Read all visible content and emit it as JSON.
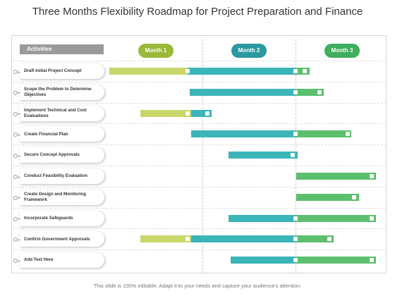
{
  "title": "Three Months Flexibility Roadmap for Project Preparation and Finance",
  "activities_label": "Activities",
  "months": [
    {
      "label": "Month 1",
      "color": "#9ab83a"
    },
    {
      "label": "Month 2",
      "color": "#2a9aa0"
    },
    {
      "label": "Month 3",
      "color": "#3fae5e"
    }
  ],
  "colors": {
    "lime": "#c8d66a",
    "teal": "#3bb5b7",
    "green": "#5cbf6e"
  },
  "rows": [
    {
      "label": "Draft Initial Project Concept",
      "segments": [
        {
          "color": "lime",
          "start": 0.0,
          "end": 0.84
        },
        {
          "color": "teal",
          "start": 0.84,
          "end": 2.0
        },
        {
          "color": "green",
          "start": 2.0,
          "end": 2.15
        }
      ],
      "markers": [
        0.84,
        2.0,
        2.1
      ]
    },
    {
      "label": "Scope the Problem to Determine Objectives",
      "segments": [
        {
          "color": "teal",
          "start": 0.86,
          "end": 2.0
        },
        {
          "color": "green",
          "start": 2.0,
          "end": 2.3
        }
      ],
      "markers": [
        2.0,
        2.26
      ]
    },
    {
      "label": "Implement Technical and Cost Evaluations",
      "segments": [
        {
          "color": "lime",
          "start": 0.33,
          "end": 0.88
        },
        {
          "color": "teal",
          "start": 0.88,
          "end": 1.1
        }
      ],
      "markers": [
        0.84,
        1.05
      ]
    },
    {
      "label": "Create Financial Plan",
      "segments": [
        {
          "color": "teal",
          "start": 0.88,
          "end": 2.0
        },
        {
          "color": "green",
          "start": 2.0,
          "end": 2.6
        }
      ],
      "markers": [
        2.0,
        2.56
      ]
    },
    {
      "label": "Secure Concept Approvals",
      "segments": [
        {
          "color": "teal",
          "start": 1.28,
          "end": 2.02
        }
      ],
      "markers": [
        1.97
      ]
    },
    {
      "label": "Conduct Feasibility Evaluation",
      "segments": [
        {
          "color": "green",
          "start": 2.01,
          "end": 2.86
        }
      ],
      "markers": [
        2.82
      ]
    },
    {
      "label": "Create Design and Monitoring Framework",
      "segments": [
        {
          "color": "green",
          "start": 2.01,
          "end": 2.68
        }
      ],
      "markers": [
        2.63
      ]
    },
    {
      "label": "Incorporate Safeguards",
      "segments": [
        {
          "color": "teal",
          "start": 1.28,
          "end": 2.0
        },
        {
          "color": "green",
          "start": 2.0,
          "end": 2.86
        }
      ],
      "markers": [
        2.0,
        2.82
      ]
    },
    {
      "label": "Confirm Government Approvals",
      "segments": [
        {
          "color": "lime",
          "start": 0.33,
          "end": 0.88
        },
        {
          "color": "teal",
          "start": 0.88,
          "end": 2.0
        },
        {
          "color": "green",
          "start": 2.0,
          "end": 2.41
        }
      ],
      "markers": [
        0.84,
        2.0,
        2.36
      ]
    },
    {
      "label": "Add Text Here",
      "segments": [
        {
          "color": "teal",
          "start": 1.3,
          "end": 2.0
        },
        {
          "color": "green",
          "start": 2.0,
          "end": 2.86
        }
      ],
      "markers": [
        2.0,
        2.82
      ]
    }
  ],
  "footer": "This slide is 100% editable. Adapt it to your needs and capture your audience's attention."
}
